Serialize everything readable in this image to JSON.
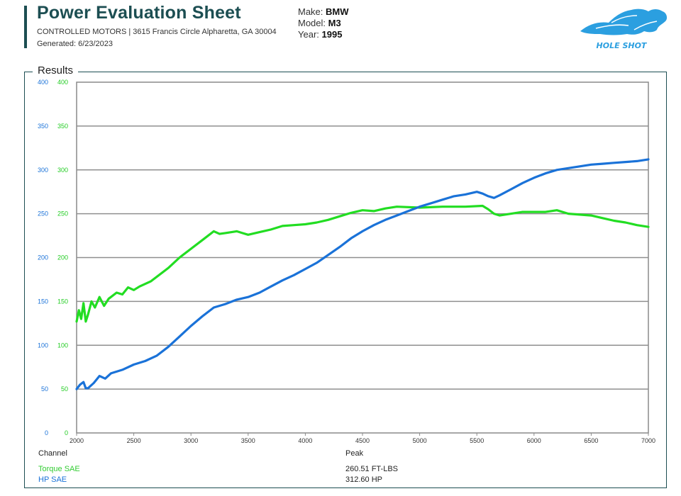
{
  "header": {
    "title": "Power Evaluation Sheet",
    "address": "CONTROLLED MOTORS | 3615 Francis Circle Alpharetta, GA 30004",
    "generated": "Generated: 6/23/2023"
  },
  "vehicle": {
    "make_label": "Make:",
    "make": "BMW",
    "model_label": "Model:",
    "model": "M3",
    "year_label": "Year:",
    "year": "1995"
  },
  "logo": {
    "text": "HOLE SHOT",
    "color": "#2b9fe0"
  },
  "section_title": "Results",
  "chart_data": {
    "type": "line",
    "title": "",
    "xlabel": "",
    "ylabel": "",
    "xlim": [
      2000,
      7000
    ],
    "ylim": [
      0,
      400
    ],
    "x_ticks": [
      2000,
      2500,
      3000,
      3500,
      4000,
      4500,
      5000,
      5500,
      6000,
      6500,
      7000
    ],
    "y_ticks": [
      0,
      50,
      100,
      150,
      200,
      250,
      300,
      350,
      400
    ],
    "grid": true,
    "series": [
      {
        "name": "Torque SAE",
        "color": "#22dd22",
        "x": [
          2000,
          2020,
          2040,
          2060,
          2080,
          2100,
          2130,
          2160,
          2200,
          2240,
          2280,
          2350,
          2400,
          2450,
          2500,
          2550,
          2650,
          2800,
          2900,
          3000,
          3100,
          3200,
          3250,
          3300,
          3400,
          3450,
          3500,
          3600,
          3700,
          3800,
          3900,
          4000,
          4100,
          4200,
          4300,
          4400,
          4500,
          4600,
          4700,
          4800,
          5000,
          5200,
          5400,
          5550,
          5600,
          5650,
          5700,
          5800,
          5900,
          6000,
          6100,
          6200,
          6300,
          6400,
          6500,
          6600,
          6700,
          6800,
          6900,
          7000
        ],
        "values": [
          127,
          140,
          130,
          148,
          127,
          135,
          150,
          143,
          155,
          145,
          153,
          160,
          158,
          166,
          163,
          167,
          173,
          188,
          200,
          210,
          220,
          230,
          227,
          228,
          230,
          228,
          226,
          229,
          232,
          236,
          237,
          238,
          240,
          243,
          247,
          251,
          254,
          253,
          256,
          258,
          257,
          258,
          258,
          259,
          255,
          250,
          248,
          250,
          252,
          252,
          252,
          254,
          250,
          249,
          248,
          245,
          242,
          240,
          237,
          235
        ]
      },
      {
        "name": "HP SAE",
        "color": "#1a72d8",
        "x": [
          2000,
          2030,
          2060,
          2080,
          2100,
          2150,
          2200,
          2250,
          2300,
          2400,
          2500,
          2600,
          2700,
          2800,
          2900,
          3000,
          3100,
          3200,
          3300,
          3400,
          3500,
          3600,
          3700,
          3800,
          3900,
          4000,
          4100,
          4200,
          4300,
          4400,
          4500,
          4600,
          4700,
          4800,
          4900,
          5000,
          5100,
          5200,
          5300,
          5400,
          5500,
          5550,
          5600,
          5650,
          5700,
          5800,
          5900,
          6000,
          6100,
          6200,
          6300,
          6400,
          6500,
          6600,
          6700,
          6800,
          6900,
          7000
        ],
        "values": [
          50,
          55,
          58,
          51,
          51,
          57,
          65,
          62,
          68,
          72,
          78,
          82,
          88,
          98,
          110,
          122,
          133,
          143,
          147,
          152,
          155,
          160,
          167,
          174,
          180,
          187,
          194,
          203,
          212,
          222,
          230,
          237,
          243,
          248,
          253,
          258,
          262,
          266,
          270,
          272,
          275,
          273,
          270,
          268,
          271,
          278,
          285,
          291,
          296,
          300,
          302,
          304,
          306,
          307,
          308,
          309,
          310,
          312
        ]
      }
    ],
    "table": {
      "headers": [
        "Channel",
        "Peak"
      ],
      "rows": [
        {
          "channel": "Torque SAE",
          "peak": "260.51 FT-LBS",
          "color": "#33cc33"
        },
        {
          "channel": "HP SAE",
          "peak": "312.60 HP",
          "color": "#1a72d8"
        }
      ]
    }
  }
}
